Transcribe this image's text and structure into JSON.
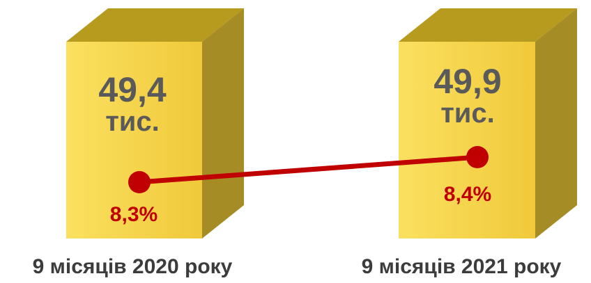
{
  "colors": {
    "box_front": "#f6d244",
    "box_top": "#b79b1f",
    "box_side": "#a58c25",
    "value_text": "#5a5a5a",
    "line": "#c00000",
    "category_text": "#3c3c3c"
  },
  "chart_data": {
    "type": "line",
    "categories": [
      "9 місяців 2020 року",
      "9 місяців 2021 року"
    ],
    "series": [
      {
        "values": [
          49.4,
          49.9
        ],
        "labels": [
          "49,4",
          "49,9"
        ],
        "unit": "тис."
      },
      {
        "values": [
          8.3,
          8.4
        ],
        "labels": [
          "8,3%",
          "8,4%"
        ]
      }
    ]
  }
}
